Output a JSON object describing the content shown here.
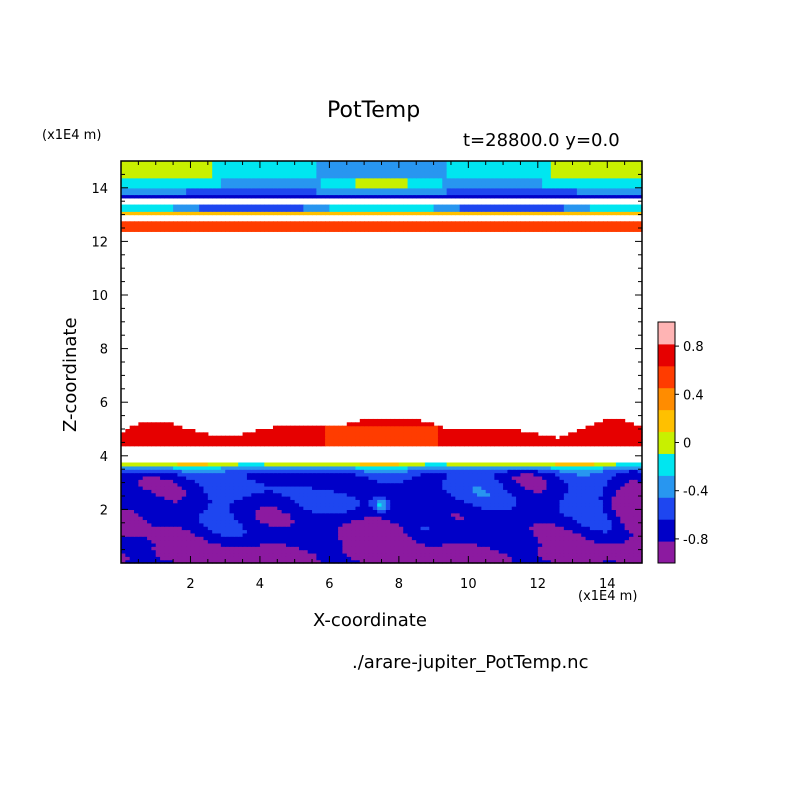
{
  "chart_data": {
    "type": "heatmap",
    "title": "PotTemp",
    "subtitle": "t=28800.0 y=0.0",
    "xlabel": "X-coordinate",
    "ylabel": "Z-coordinate",
    "x_unit": "(x1E4 m)",
    "z_unit": "(x1E4 m)",
    "source": "./arare-jupiter_PotTemp.nc",
    "xlim": [
      0,
      15
    ],
    "ylim": [
      0,
      15
    ],
    "x_ticks": [
      2,
      4,
      6,
      8,
      10,
      12,
      14
    ],
    "y_ticks": [
      2,
      4,
      6,
      8,
      10,
      12,
      14
    ],
    "colorbar": {
      "levels": [
        -1.0,
        -0.8,
        -0.6,
        -0.4,
        -0.2,
        0,
        0.2,
        0.4,
        0.6,
        0.8,
        1.0
      ],
      "tick_labels": [
        "-0.8",
        "-0.4",
        "0",
        "0.4",
        "0.8"
      ],
      "tick_values": [
        -0.8,
        -0.4,
        0,
        0.4,
        0.8
      ],
      "colors": [
        "#8c1aa0",
        "#0000c8",
        "#1e46f0",
        "#2896f0",
        "#00e6f0",
        "#c8f000",
        "#ffc000",
        "#ff8c00",
        "#ff3c00",
        "#e60000",
        "#ffb4b4"
      ]
    },
    "note": "Contour field of potential temperature deviation; bottom layer mostly -0.6 to -0.8 with a warm band near z=4 and a layer near z=12.5-14.5"
  }
}
